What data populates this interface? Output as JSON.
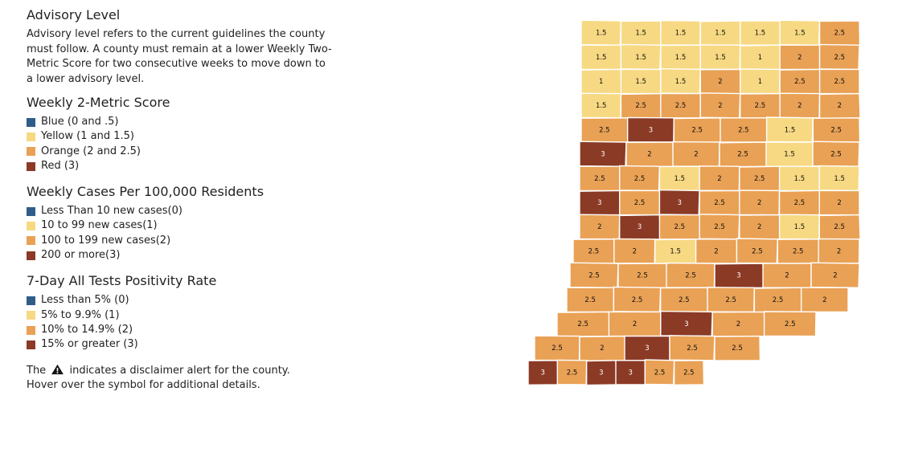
{
  "advisory": {
    "title": "Advisory Level",
    "description": "Advisory level refers to the current guidelines the county must follow. A county must remain at a lower Weekly Two-Metric Score for two consecutive weeks to move down to a lower advisory level."
  },
  "colors": {
    "blue": "#2f5d8a",
    "yellow": "#f7d983",
    "orange": "#e9a155",
    "red": "#8b3a26"
  },
  "score_legend": {
    "title": "Weekly 2-Metric Score",
    "items": [
      {
        "label": "Blue (0 and .5)",
        "color": "#2f5d8a"
      },
      {
        "label": "Yellow (1 and 1.5)",
        "color": "#f7d983"
      },
      {
        "label": "Orange (2 and 2.5)",
        "color": "#e9a155"
      },
      {
        "label": "Red (3)",
        "color": "#8b3a26"
      }
    ]
  },
  "cases_legend": {
    "title": "Weekly Cases Per 100,000 Residents",
    "items": [
      {
        "label": "Less Than 10 new cases(0)",
        "color": "#2f5d8a"
      },
      {
        "label": "10 to 99 new cases(1)",
        "color": "#f7d983"
      },
      {
        "label": "100 to 199 new cases(2)",
        "color": "#e9a155"
      },
      {
        "label": "200 or more(3)",
        "color": "#8b3a26"
      }
    ]
  },
  "positivity_legend": {
    "title": "7-Day All Tests Positivity Rate",
    "items": [
      {
        "label": "Less than 5% (0)",
        "color": "#2f5d8a"
      },
      {
        "label": "5% to 9.9% (1)",
        "color": "#f7d983"
      },
      {
        "label": "10% to 14.9% (2)",
        "color": "#e9a155"
      },
      {
        "label": "15% or greater (3)",
        "color": "#8b3a26"
      }
    ]
  },
  "disclaimer": {
    "before": "The",
    "after": "indicates a disclaimer alert for the county.",
    "line2": "Hover over the symbol for additional details."
  },
  "map": {
    "icon": "county-map",
    "rows": [
      [
        "1.5",
        "1.5",
        "1.5",
        "1.5",
        "1.5",
        "1.5",
        "2.5"
      ],
      [
        "1.5",
        "1.5",
        "1.5",
        "1.5",
        "1",
        "2",
        "2.5"
      ],
      [
        "1",
        "1.5",
        "1.5",
        "2",
        "1",
        "2.5",
        "2.5"
      ],
      [
        "1.5",
        "2.5",
        "2.5",
        "2",
        "2.5",
        "2",
        "2"
      ],
      [
        "2.5",
        "3",
        "2.5",
        "2.5",
        "1.5",
        "2.5"
      ],
      [
        "3",
        "2",
        "2",
        "2.5",
        "1.5",
        "2.5"
      ],
      [
        "2.5",
        "2.5",
        "1.5",
        "2",
        "2.5",
        "1.5",
        "1.5"
      ],
      [
        "3",
        "2.5",
        "3",
        "2.5",
        "2",
        "2.5",
        "2"
      ],
      [
        "2",
        "3",
        "2.5",
        "2.5",
        "2",
        "1.5",
        "2.5"
      ],
      [
        "2.5",
        "2",
        "1.5",
        "2",
        "2.5",
        "2.5",
        "2"
      ],
      [
        "2.5",
        "2.5",
        "2.5",
        "3",
        "2",
        "2"
      ],
      [
        "2.5",
        "2.5",
        "2.5",
        "2.5",
        "2.5",
        "2"
      ],
      [
        "2.5",
        "2",
        "3",
        "2",
        "2.5"
      ],
      [
        "2.5",
        "2",
        "3",
        "2.5",
        "2.5"
      ],
      [
        "3",
        "2.5",
        "3",
        "3",
        "2.5",
        "2.5"
      ]
    ]
  }
}
